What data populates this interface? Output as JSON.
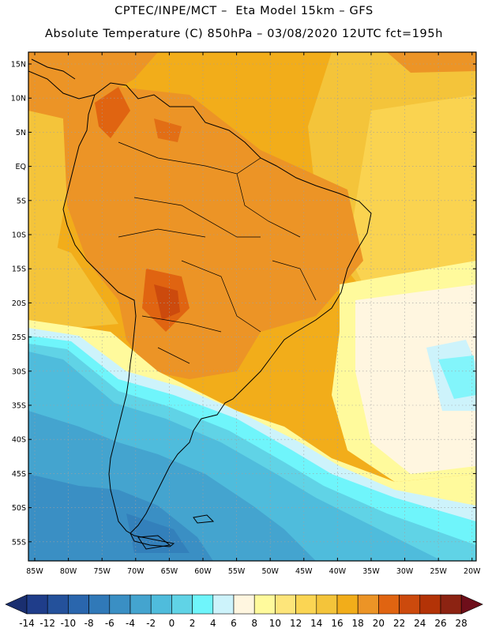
{
  "header": {
    "line1": "CPTEC/INPE/MCT –  Eta Model 15km – GFS",
    "line2": "Absolute Temperature (C) 850hPa – 03/08/2020 12UTC fct=195h"
  },
  "axes": {
    "lat_labels": [
      "15N",
      "10N",
      "5N",
      "EQ",
      "5S",
      "10S",
      "15S",
      "20S",
      "25S",
      "30S",
      "35S",
      "40S",
      "45S",
      "50S",
      "55S"
    ],
    "lon_labels": [
      "85W",
      "80W",
      "75W",
      "70W",
      "65W",
      "60W",
      "55W",
      "50W",
      "45W",
      "40W",
      "35W",
      "30W",
      "25W",
      "20W"
    ]
  },
  "colorbar": {
    "ticks": [
      "-14",
      "-12",
      "-10",
      "-8",
      "-6",
      "-4",
      "-2",
      "0",
      "2",
      "4",
      "6",
      "8",
      "10",
      "12",
      "14",
      "16",
      "18",
      "20",
      "22",
      "24",
      "26",
      "28"
    ],
    "colors": [
      "#1f3d8a",
      "#24519b",
      "#2a66ad",
      "#3079b8",
      "#3a8fc4",
      "#44a4cf",
      "#4fbcdc",
      "#60d3e6",
      "#6ff5fb",
      "#cdf3fb",
      "#fff6e0",
      "#fffa9c",
      "#fde57a",
      "#fbd553",
      "#f4c43a",
      "#f2ad1a",
      "#ec9426",
      "#e06411",
      "#cc4a0d",
      "#b33307",
      "#8c2312"
    ],
    "under_color": "#1a2f70",
    "over_color": "#6e0e1a"
  },
  "colors": {
    "frame": "#000000",
    "grid": "#a0a0a0",
    "coast": "#000000"
  }
}
